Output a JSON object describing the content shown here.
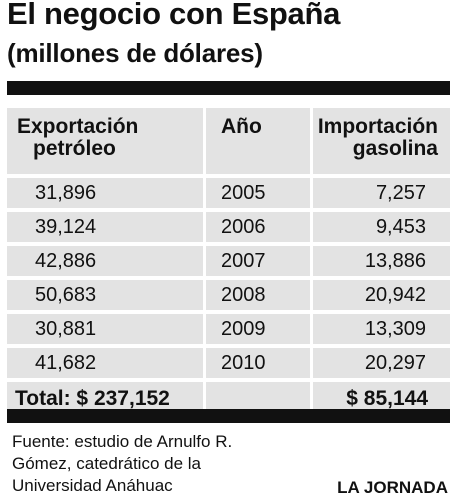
{
  "header": {
    "title": "El negocio con España",
    "subtitle": "(millones de dólares)"
  },
  "table": {
    "headers": {
      "exportacion_line1": "Exportación",
      "exportacion_line2": "petróleo",
      "anio": "Año",
      "importacion_line1": "Importación",
      "importacion_line2": "gasolina"
    },
    "rows": [
      {
        "exportacion": "31,896",
        "anio": "2005",
        "importacion": "7,257"
      },
      {
        "exportacion": "39,124",
        "anio": "2006",
        "importacion": "9,453"
      },
      {
        "exportacion": "42,886",
        "anio": "2007",
        "importacion": "13,886"
      },
      {
        "exportacion": "50,683",
        "anio": "2008",
        "importacion": "20,942"
      },
      {
        "exportacion": "30,881",
        "anio": "2009",
        "importacion": "13,309"
      },
      {
        "exportacion": "41,682",
        "anio": "2010",
        "importacion": "20,297"
      }
    ],
    "total": {
      "exportacion": "Total: $ 237,152",
      "importacion": "$ 85,144"
    }
  },
  "footer": {
    "source_lines": [
      "Fuente: estudio de Arnulfo R.",
      "Gómez, catedrático de la",
      "Universidad Anáhuac"
    ],
    "credit": "LA JORNADA"
  },
  "chart_data": {
    "type": "table",
    "title": "El negocio con España",
    "subtitle": "(millones de dólares)",
    "columns": [
      "Exportación petróleo",
      "Año",
      "Importación gasolina"
    ],
    "x": [
      2005,
      2006,
      2007,
      2008,
      2009,
      2010
    ],
    "series": [
      {
        "name": "Exportación petróleo",
        "values": [
          31896,
          39124,
          42886,
          50683,
          30881,
          41682
        ]
      },
      {
        "name": "Importación gasolina",
        "values": [
          7257,
          9453,
          13886,
          20942,
          13309,
          20297
        ]
      }
    ],
    "totals": {
      "Exportación petróleo": 237152,
      "Importación gasolina": 85144
    },
    "source": "Fuente: estudio de Arnulfo R. Gómez, catedrático de la Universidad Anáhuac",
    "credit": "LA JORNADA"
  }
}
